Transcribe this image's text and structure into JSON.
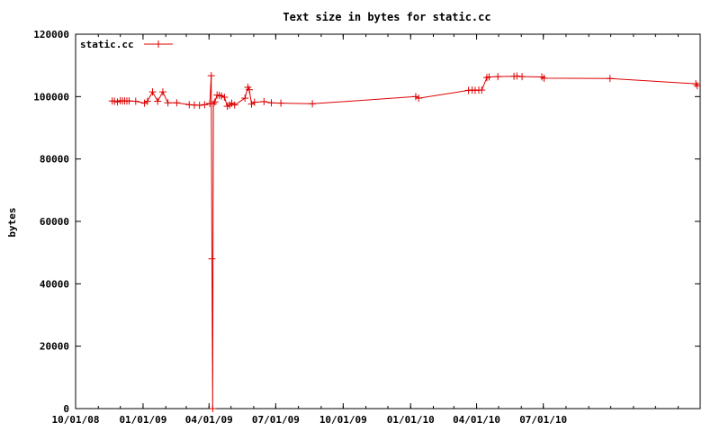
{
  "chart_data": {
    "type": "line",
    "title": "Text size in bytes for static.cc",
    "xlabel": "",
    "ylabel": "bytes",
    "x_ticks": [
      "10/01/08",
      "01/01/09",
      "04/01/09",
      "07/01/09",
      "10/01/09",
      "01/01/10",
      "04/01/10",
      "07/01/10"
    ],
    "x_range": [
      "2008-10-01",
      "2011-01-31"
    ],
    "y_ticks": [
      0,
      20000,
      40000,
      60000,
      80000,
      100000,
      120000
    ],
    "ylim": [
      0,
      120000
    ],
    "legend_position": "top-left",
    "grid": false,
    "series": [
      {
        "name": "static.cc",
        "color": "#dd0000",
        "marker": "plus",
        "points": [
          [
            "2008-11-20",
            98600
          ],
          [
            "2008-11-23",
            98500
          ],
          [
            "2008-11-27",
            98300
          ],
          [
            "2008-12-01",
            98700
          ],
          [
            "2008-12-04",
            98600
          ],
          [
            "2008-12-07",
            98600
          ],
          [
            "2008-12-10",
            98600
          ],
          [
            "2008-12-13",
            98600
          ],
          [
            "2008-12-22",
            98500
          ],
          [
            "2009-01-03",
            97900
          ],
          [
            "2009-01-07",
            98500
          ],
          [
            "2009-01-14",
            101500
          ],
          [
            "2009-01-21",
            98500
          ],
          [
            "2009-01-28",
            101500
          ],
          [
            "2009-02-04",
            98000
          ],
          [
            "2009-02-16",
            98000
          ],
          [
            "2009-03-05",
            97400
          ],
          [
            "2009-03-12",
            97300
          ],
          [
            "2009-03-19",
            97200
          ],
          [
            "2009-03-26",
            97400
          ],
          [
            "2009-04-02",
            97800
          ],
          [
            "2009-04-04",
            106700
          ],
          [
            "2009-04-05",
            48000
          ],
          [
            "2009-04-06",
            0
          ],
          [
            "2009-04-07",
            97700
          ],
          [
            "2009-04-09",
            98300
          ],
          [
            "2009-04-12",
            100500
          ],
          [
            "2009-04-15",
            100400
          ],
          [
            "2009-04-18",
            100200
          ],
          [
            "2009-04-22",
            99800
          ],
          [
            "2009-04-26",
            96900
          ],
          [
            "2009-04-29",
            97300
          ],
          [
            "2009-05-02",
            97900
          ],
          [
            "2009-05-06",
            97300
          ],
          [
            "2009-05-20",
            99500
          ],
          [
            "2009-05-24",
            103000
          ],
          [
            "2009-05-26",
            102200
          ],
          [
            "2009-05-29",
            97600
          ],
          [
            "2009-06-02",
            98200
          ],
          [
            "2009-06-15",
            98400
          ],
          [
            "2009-06-25",
            98000
          ],
          [
            "2009-07-08",
            97900
          ],
          [
            "2009-08-20",
            97700
          ],
          [
            "2010-01-08",
            100000
          ],
          [
            "2010-01-12",
            99500
          ],
          [
            "2010-03-21",
            102000
          ],
          [
            "2010-03-26",
            102100
          ],
          [
            "2010-03-30",
            102000
          ],
          [
            "2010-04-04",
            102100
          ],
          [
            "2010-04-08",
            102100
          ],
          [
            "2010-04-15",
            106100
          ],
          [
            "2010-04-18",
            106300
          ],
          [
            "2010-04-30",
            106400
          ],
          [
            "2010-05-22",
            106500
          ],
          [
            "2010-05-26",
            106600
          ],
          [
            "2010-06-02",
            106400
          ],
          [
            "2010-06-29",
            106300
          ],
          [
            "2010-07-02",
            105900
          ],
          [
            "2010-09-30",
            105800
          ],
          [
            "2011-01-25",
            104100
          ],
          [
            "2011-01-27",
            103500
          ]
        ]
      }
    ]
  }
}
